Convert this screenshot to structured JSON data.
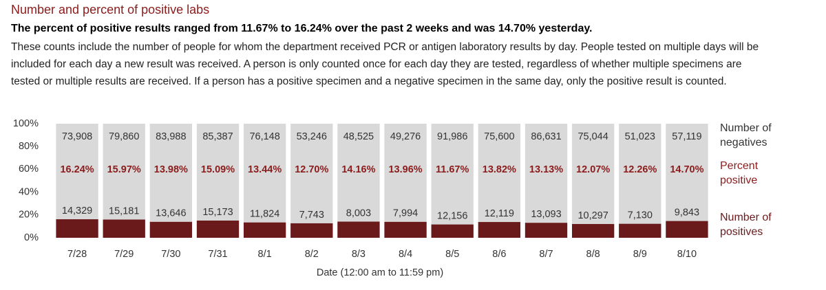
{
  "header": {
    "title": "Number and percent of positive labs",
    "subtitle": "The percent of positive results ranged from 11.67% to 16.24% over the past 2 weeks and was 14.70% yesterday.",
    "description": "These counts include the number of people for whom the department received PCR or antigen laboratory results by day. People tested on multiple days will be included for each day a new result was received. A person is only counted once for each day they are tested, regardless of whether multiple specimens are tested or multiple results are received. If a person has a positive specimen and a negative specimen in the same day, only the positive result is counted."
  },
  "chart_data": {
    "type": "bar",
    "stacked": "percent",
    "x_label": "Date (12:00 am to 11:59 pm)",
    "categories": [
      "7/28",
      "7/29",
      "7/30",
      "7/31",
      "8/1",
      "8/2",
      "8/3",
      "8/4",
      "8/5",
      "8/6",
      "8/7",
      "8/8",
      "8/9",
      "8/10"
    ],
    "series": [
      {
        "name": "Number of positives",
        "color": "#6b1a1c",
        "values": [
          14329,
          15181,
          13646,
          15173,
          11824,
          7743,
          8003,
          7994,
          12156,
          12119,
          13093,
          10297,
          7130,
          9843
        ],
        "value_labels": [
          "14,329",
          "15,181",
          "13,646",
          "15,173",
          "11,824",
          "7,743",
          "8,003",
          "7,994",
          "12,156",
          "12,119",
          "13,093",
          "10,297",
          "7,130",
          "9,843"
        ]
      },
      {
        "name": "Number of negatives",
        "color": "#d9d9d9",
        "values": [
          73908,
          79860,
          83988,
          85387,
          76148,
          53246,
          48525,
          49276,
          91986,
          75600,
          86631,
          75044,
          51023,
          57119
        ],
        "value_labels": [
          "73,908",
          "79,860",
          "83,988",
          "85,387",
          "76,148",
          "53,246",
          "48,525",
          "49,276",
          "91,986",
          "75,600",
          "86,631",
          "75,044",
          "51,023",
          "57,119"
        ]
      },
      {
        "name": "Percent positive",
        "color": "#8b1c1c",
        "values": [
          16.24,
          15.97,
          13.98,
          15.09,
          13.44,
          12.7,
          14.16,
          13.96,
          11.67,
          13.82,
          13.13,
          12.07,
          12.26,
          14.7
        ],
        "value_labels": [
          "16.24%",
          "15.97%",
          "13.98%",
          "15.09%",
          "13.44%",
          "12.70%",
          "14.16%",
          "13.96%",
          "11.67%",
          "13.82%",
          "13.13%",
          "12.07%",
          "12.26%",
          "14.70%"
        ]
      }
    ],
    "ylim": [
      0,
      100
    ],
    "yticks": [
      {
        "value": 0,
        "label": "0%"
      },
      {
        "value": 20,
        "label": "20%"
      },
      {
        "value": 40,
        "label": "40%"
      },
      {
        "value": 60,
        "label": "60%"
      },
      {
        "value": 80,
        "label": "80%"
      },
      {
        "value": 100,
        "label": "100%"
      }
    ]
  }
}
